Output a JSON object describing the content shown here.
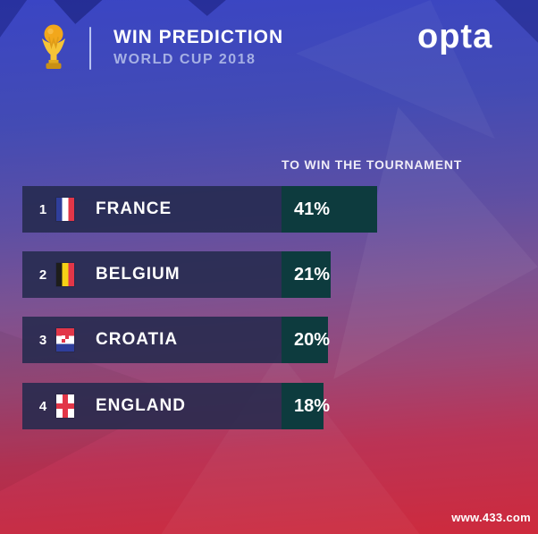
{
  "header": {
    "title": "WIN PREDICTION",
    "subtitle": "WORLD CUP 2018",
    "brand": "opta",
    "trophy_icon": "world-cup-trophy-icon"
  },
  "section_label": "TO WIN THE TOURNAMENT",
  "rows": [
    {
      "rank": "1",
      "country": "FRANCE",
      "percent": "41%",
      "flag_icon": "france-flag-icon"
    },
    {
      "rank": "2",
      "country": "BELGIUM",
      "percent": "21%",
      "flag_icon": "belgium-flag-icon"
    },
    {
      "rank": "3",
      "country": "CROATIA",
      "percent": "20%",
      "flag_icon": "croatia-flag-icon"
    },
    {
      "rank": "4",
      "country": "ENGLAND",
      "percent": "18%",
      "flag_icon": "england-flag-icon"
    }
  ],
  "chart_data": {
    "type": "bar",
    "title": "WIN PREDICTION",
    "subtitle": "WORLD CUP 2018",
    "ylabel": "TO WIN THE TOURNAMENT",
    "xlabel": "",
    "categories": [
      "FRANCE",
      "BELGIUM",
      "CROATIA",
      "ENGLAND"
    ],
    "values": [
      41,
      21,
      20,
      18
    ],
    "value_unit": "%",
    "orientation": "horizontal",
    "xlim": [
      0,
      100
    ],
    "grid": false,
    "legend": "none",
    "bar_label_color": "#FFFFFF",
    "bar_color": "#0D3B3E",
    "bar_base_color": "#242A4D"
  },
  "watermark": "www.433.com",
  "colors": {
    "bg_gradient_top": "#3A45C4",
    "bg_gradient_mid": "#7C5292",
    "bg_gradient_bottom": "#CE2A3C",
    "row_navy": "#242A4D",
    "row_teal": "#0D3B3E",
    "title_text": "#FFFFFF",
    "subtitle_text": "#A6B0E4",
    "trophy_gold": "#F6C437",
    "trophy_globe": "#F2A71B"
  }
}
